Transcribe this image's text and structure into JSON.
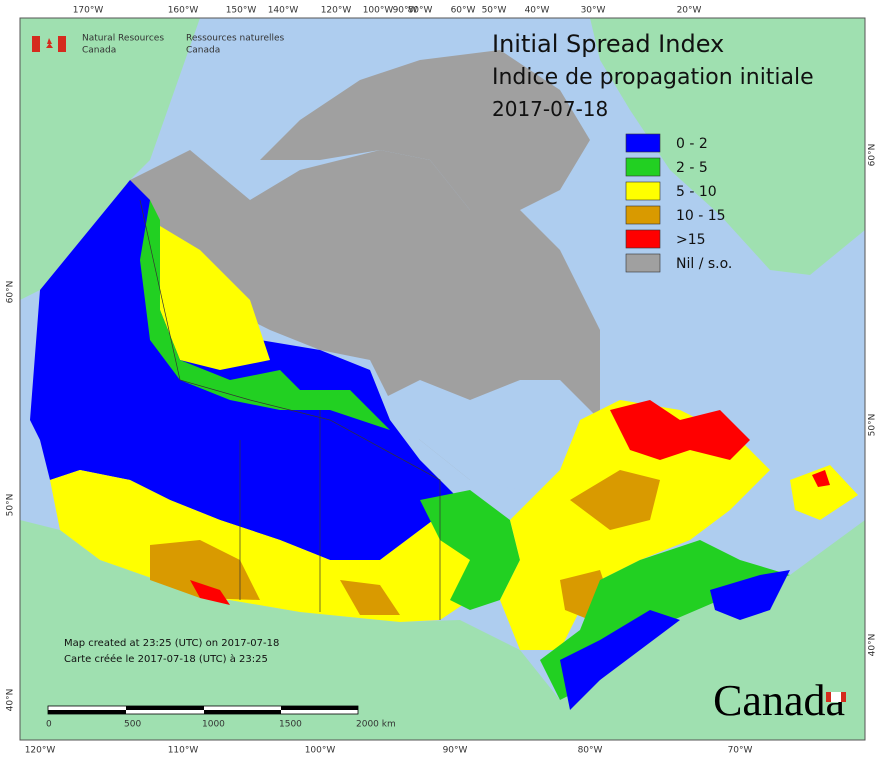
{
  "agency": {
    "en_line1": "Natural Resources",
    "en_line2": "Canada",
    "fr_line1": "Ressources naturelles",
    "fr_line2": "Canada"
  },
  "title": {
    "en": "Initial Spread Index",
    "fr": "Indice de propagation initiale",
    "date": "2017-07-18"
  },
  "legend": {
    "items": [
      {
        "label": "0 - 2",
        "color": "#0000ff"
      },
      {
        "label": "2 - 5",
        "color": "#22d022"
      },
      {
        "label": "5 - 10",
        "color": "#ffff00"
      },
      {
        "label": "10 - 15",
        "color": "#d99a00"
      },
      {
        "label": ">15",
        "color": "#ff0000"
      },
      {
        "label": "Nil / s.o.",
        "color": "#a0a0a0"
      }
    ]
  },
  "graticule": {
    "top": [
      "170°W",
      "160°W",
      "150°W",
      "140°W",
      "120°W",
      "100°W",
      "90°W",
      "80°W",
      "60°W",
      "50°W",
      "40°W",
      "30°W",
      "20°W"
    ],
    "bottom": [
      "120°W",
      "110°W",
      "100°W",
      "90°W",
      "80°W",
      "70°W"
    ],
    "left": [
      "60°N",
      "50°N",
      "40°N"
    ],
    "right": [
      "60°N",
      "50°N",
      "40°N"
    ]
  },
  "notes": [
    "Map created at 23:25 (UTC) on 2017-07-18",
    "Carte créée le 2017-07-18 (UTC) à 23:25"
  ],
  "scale_bar": {
    "labels": [
      "0",
      "500",
      "1000",
      "1500",
      "2000 km"
    ]
  },
  "wordmark": "Canada"
}
